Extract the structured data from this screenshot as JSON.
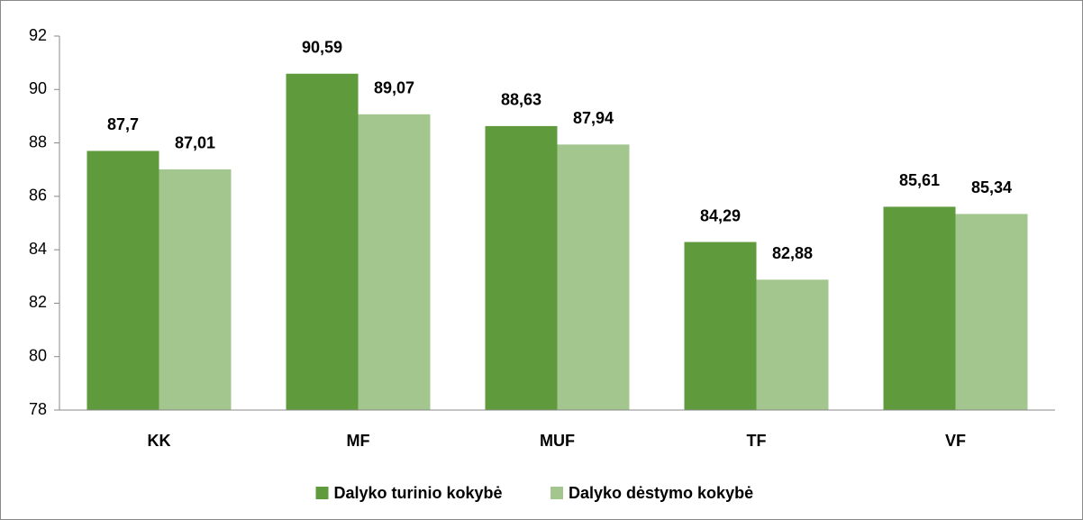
{
  "chart_data": {
    "type": "bar",
    "categories": [
      "KK",
      "MF",
      "MUF",
      "TF",
      "VF"
    ],
    "series": [
      {
        "name": "Dalyko turinio kokybė",
        "color": "#5f9a3d",
        "values": [
          87.7,
          90.59,
          88.63,
          84.29,
          85.61
        ],
        "value_labels": [
          "87,7",
          "90,59",
          "88,63",
          "84,29",
          "85,61"
        ]
      },
      {
        "name": "Dalyko dėstymo kokybė",
        "color": "#a3c68f",
        "values": [
          87.01,
          89.07,
          87.94,
          82.88,
          85.34
        ],
        "value_labels": [
          "87,01",
          "89,07",
          "87,94",
          "82,88",
          "85,34"
        ]
      }
    ],
    "ylim": [
      78,
      92
    ],
    "yticks": [
      78,
      80,
      82,
      84,
      86,
      88,
      90,
      92
    ],
    "grid": false,
    "legend": "bottom"
  }
}
